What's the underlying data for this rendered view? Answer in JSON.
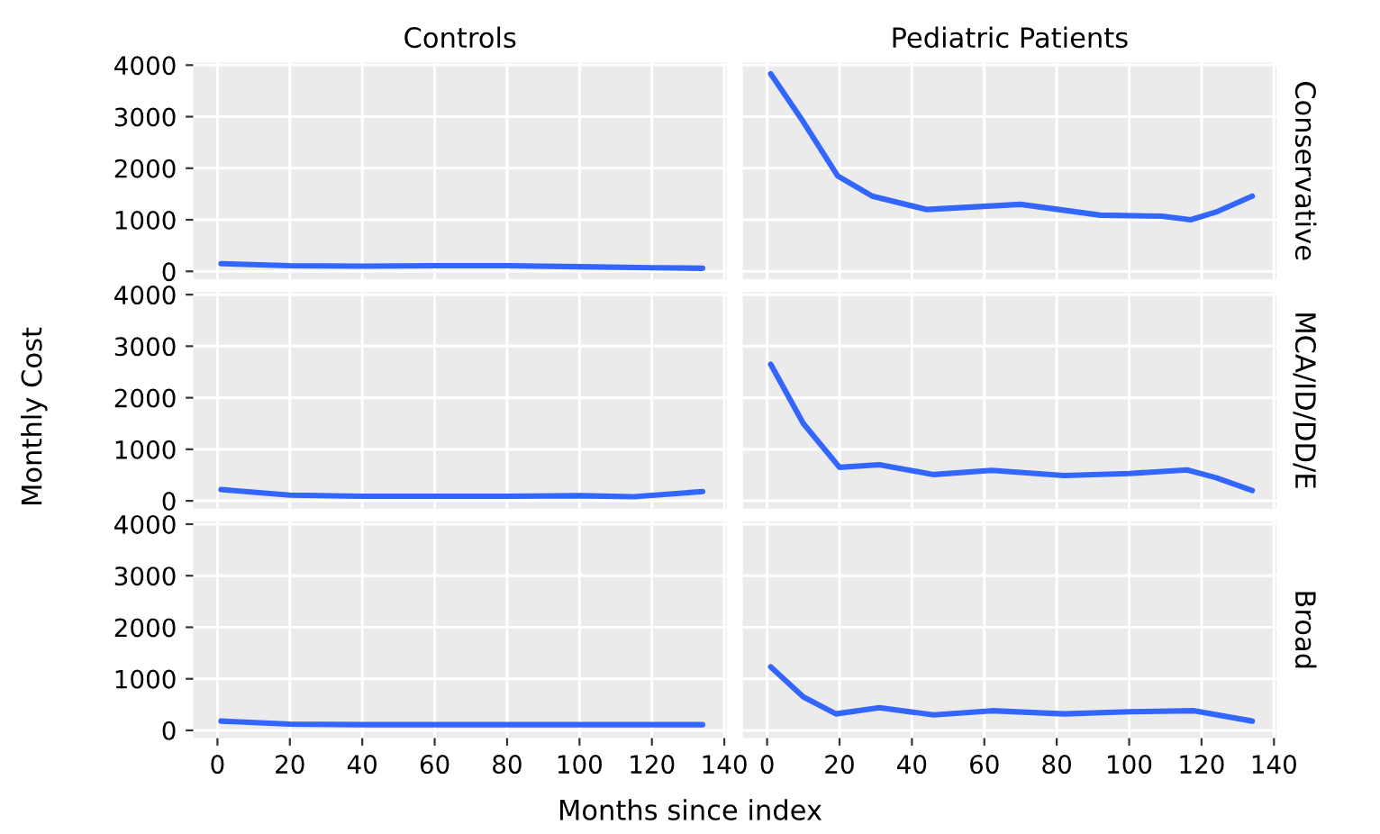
{
  "chart_data": [
    {
      "type": "line",
      "title": "Controls",
      "xlabel": "Months since index",
      "ylabel": "Monthly Cost",
      "x": [
        1,
        20,
        40,
        60,
        80,
        100,
        120,
        134
      ],
      "series": [
        {
          "color": "#3366ff",
          "values": [
            150,
            110,
            100,
            110,
            110,
            90,
            70,
            60
          ]
        }
      ],
      "xlim": [
        -6.7,
        140.7
      ],
      "ylim": [
        -150,
        4050
      ],
      "xticks": [
        0,
        20,
        40,
        60,
        80,
        100,
        120,
        140
      ],
      "yticks": [
        0,
        1000,
        2000,
        3000,
        4000
      ],
      "grid": true,
      "tick_labels": "y"
    },
    {
      "type": "line",
      "title": "Pediatric Patients",
      "y2label": "Conservative",
      "x": [
        1,
        10,
        19.5,
        29,
        44,
        70,
        92,
        109,
        117,
        124,
        134
      ],
      "series": [
        {
          "color": "#3366ff",
          "values": [
            3830,
            2900,
            1850,
            1460,
            1200,
            1300,
            1090,
            1070,
            1000,
            1150,
            1460
          ]
        }
      ],
      "xlim": [
        -6.7,
        140.7
      ],
      "ylim": [
        -150,
        4050
      ],
      "xticks": [
        0,
        20,
        40,
        60,
        80,
        100,
        120,
        140
      ],
      "yticks": [
        0,
        1000,
        2000,
        3000,
        4000
      ],
      "grid": true,
      "tick_labels": false
    },
    {
      "type": "line",
      "x": [
        1,
        20,
        40,
        60,
        80,
        100,
        115,
        134
      ],
      "series": [
        {
          "color": "#3366ff",
          "values": [
            220,
            110,
            90,
            90,
            90,
            100,
            80,
            180
          ]
        }
      ],
      "xlim": [
        -6.7,
        140.7
      ],
      "ylim": [
        -150,
        4050
      ],
      "xticks": [
        0,
        20,
        40,
        60,
        80,
        100,
        120,
        140
      ],
      "yticks": [
        0,
        1000,
        2000,
        3000,
        4000
      ],
      "grid": true,
      "tick_labels": "y"
    },
    {
      "type": "line",
      "y2label": "MCA/ID/DD/E",
      "x": [
        1,
        10,
        20,
        31,
        46,
        62,
        82,
        100,
        116,
        124,
        134
      ],
      "series": [
        {
          "color": "#3366ff",
          "values": [
            2650,
            1500,
            650,
            700,
            510,
            590,
            490,
            530,
            600,
            450,
            200
          ]
        }
      ],
      "xlim": [
        -6.7,
        140.7
      ],
      "ylim": [
        -150,
        4050
      ],
      "xticks": [
        0,
        20,
        40,
        60,
        80,
        100,
        120,
        140
      ],
      "yticks": [
        0,
        1000,
        2000,
        3000,
        4000
      ],
      "grid": true,
      "tick_labels": false
    },
    {
      "type": "line",
      "x": [
        1,
        20,
        40,
        60,
        80,
        100,
        120,
        134
      ],
      "series": [
        {
          "color": "#3366ff",
          "values": [
            180,
            120,
            110,
            110,
            110,
            110,
            110,
            110
          ]
        }
      ],
      "xlim": [
        -6.7,
        140.7
      ],
      "ylim": [
        -150,
        4050
      ],
      "xticks": [
        0,
        20,
        40,
        60,
        80,
        100,
        120,
        140
      ],
      "yticks": [
        0,
        1000,
        2000,
        3000,
        4000
      ],
      "grid": true
    },
    {
      "type": "line",
      "y2label": "Broad",
      "x": [
        1,
        10,
        19,
        31,
        46,
        62,
        82,
        100,
        118,
        134
      ],
      "series": [
        {
          "color": "#3366ff",
          "values": [
            1230,
            650,
            320,
            440,
            300,
            380,
            320,
            360,
            380,
            180
          ]
        }
      ],
      "xlim": [
        -6.7,
        140.7
      ],
      "ylim": [
        -150,
        4050
      ],
      "xticks": [
        0,
        20,
        40,
        60,
        80,
        100,
        120,
        140
      ],
      "yticks": [
        0,
        1000,
        2000,
        3000,
        4000
      ],
      "grid": true,
      "tick_labels": "x"
    }
  ]
}
